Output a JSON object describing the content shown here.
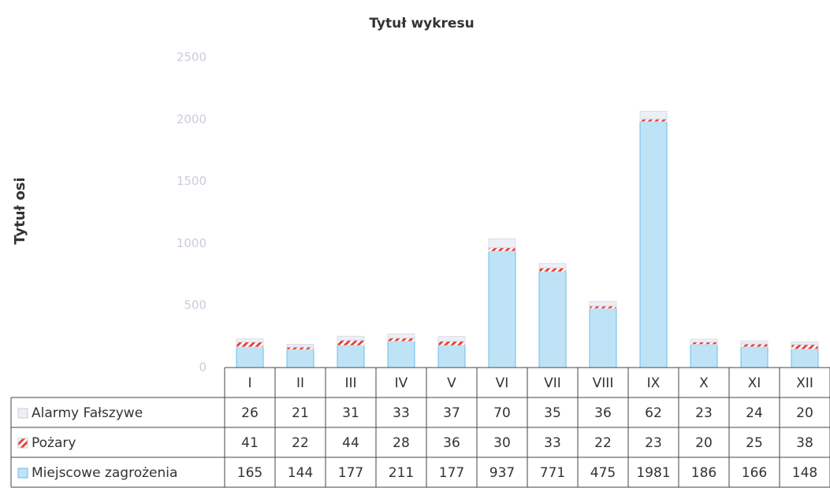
{
  "chart_data": {
    "type": "bar",
    "stacked": true,
    "title": "Tytuł wykresu",
    "y_label": "Tytuł osi",
    "categories": [
      "I",
      "II",
      "III",
      "IV",
      "V",
      "VI",
      "VII",
      "VIII",
      "IX",
      "X",
      "XI",
      "XII"
    ],
    "series": [
      {
        "name": "Alarmy Fałszywe",
        "color": "#eceff6",
        "values": [
          26,
          21,
          31,
          33,
          37,
          70,
          35,
          36,
          62,
          23,
          24,
          20
        ]
      },
      {
        "name": "Pożary",
        "color": "#e8433a",
        "values": [
          41,
          22,
          44,
          28,
          36,
          30,
          33,
          22,
          23,
          20,
          25,
          38
        ]
      },
      {
        "name": "Miejscowe zagrożenia",
        "color": "#bfe3f6",
        "values": [
          165,
          144,
          177,
          211,
          177,
          937,
          771,
          475,
          1981,
          186,
          166,
          148
        ]
      }
    ],
    "ylim": [
      0,
      2500
    ],
    "yticks": [
      0,
      500,
      1000,
      1500,
      2000,
      2500
    ],
    "grid": false
  }
}
